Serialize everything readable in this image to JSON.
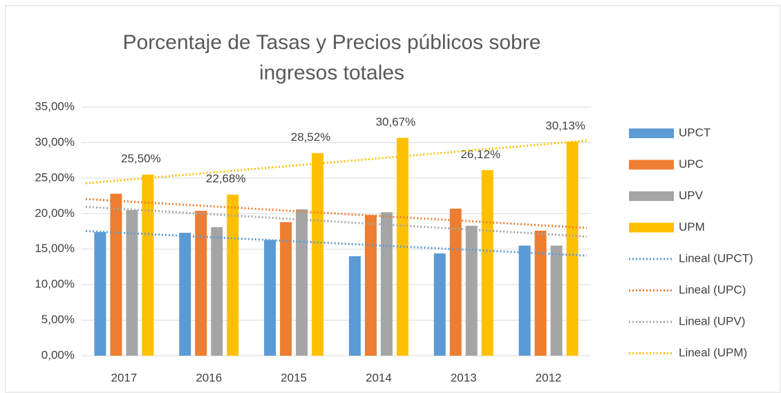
{
  "chart_data": {
    "type": "bar",
    "title": "Porcentaje de Tasas y Precios públicos sobre ingresos totales",
    "categories": [
      "2017",
      "2016",
      "2015",
      "2014",
      "2013",
      "2012"
    ],
    "series": [
      {
        "name": "UPCT",
        "color": "#5b9bd5",
        "values": [
          17.4,
          17.3,
          16.3,
          14.0,
          14.4,
          15.5
        ],
        "trendline": {
          "name": "Lineal (UPCT)"
        }
      },
      {
        "name": "UPC",
        "color": "#ed7d31",
        "values": [
          22.8,
          20.4,
          18.8,
          19.8,
          20.7,
          17.6
        ],
        "trendline": {
          "name": "Lineal (UPC)"
        }
      },
      {
        "name": "UPV",
        "color": "#a5a5a5",
        "values": [
          20.5,
          18.1,
          20.6,
          20.2,
          18.3,
          15.5
        ],
        "trendline": {
          "name": "Lineal (UPV)"
        }
      },
      {
        "name": "UPM",
        "color": "#ffc000",
        "values": [
          25.5,
          22.68,
          28.52,
          30.67,
          26.12,
          30.13
        ],
        "value_labels": [
          "25,50%",
          "22,68%",
          "28,52%",
          "30,67%",
          "26,12%",
          "30,13%"
        ],
        "trendline": {
          "name": "Lineal (UPM)"
        }
      }
    ],
    "ylim": [
      0,
      35
    ],
    "yticks": [
      {
        "value": 0,
        "label": "0,00%"
      },
      {
        "value": 5,
        "label": "5,00%"
      },
      {
        "value": 10,
        "label": "10,00%"
      },
      {
        "value": 15,
        "label": "15,00%"
      },
      {
        "value": 20,
        "label": "20,00%"
      },
      {
        "value": 25,
        "label": "25,00%"
      },
      {
        "value": 30,
        "label": "30,00%"
      },
      {
        "value": 35,
        "label": "35,00%"
      }
    ],
    "grid": true,
    "legend": "right"
  }
}
